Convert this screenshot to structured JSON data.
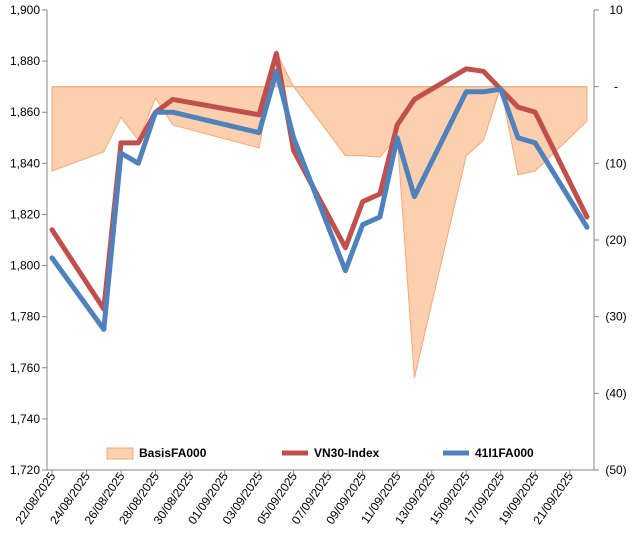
{
  "chart_data": {
    "type": "line",
    "title": "",
    "xlabel": "",
    "ylabel": "",
    "legend_position": "bottom",
    "grid": false,
    "x": [
      "22/08/2025",
      "25/08/2025",
      "26/08/2025",
      "27/08/2025",
      "28/08/2025",
      "29/08/2025",
      "03/09/2025",
      "04/09/2025",
      "05/09/2025",
      "08/09/2025",
      "09/09/2025",
      "10/09/2025",
      "11/09/2025",
      "12/09/2025",
      "15/09/2025",
      "16/09/2025",
      "17/09/2025",
      "18/09/2025",
      "19/09/2025",
      "22/09/2025"
    ],
    "x_tick_labels": [
      "22/08/2025",
      "24/08/2025",
      "26/08/2025",
      "28/08/2025",
      "30/08/2025",
      "01/09/2025",
      "03/09/2025",
      "05/09/2025",
      "07/09/2025",
      "09/09/2025",
      "11/09/2025",
      "13/09/2025",
      "15/09/2025",
      "17/09/2025",
      "19/09/2025",
      "21/09/2025"
    ],
    "y_left": {
      "ylim": [
        1720,
        1900
      ],
      "ticks": [
        "1,720",
        "1,740",
        "1,760",
        "1,780",
        "1,800",
        "1,820",
        "1,840",
        "1,860",
        "1,880",
        "1,900"
      ]
    },
    "y_right": {
      "ylim": [
        -50,
        10
      ],
      "ticks": [
        "(50)",
        "(40)",
        "(30)",
        "(20)",
        "(10)",
        "-",
        "10"
      ]
    },
    "series": [
      {
        "name": "BasisFA000",
        "kind": "area",
        "axis": "right",
        "color": "#FCCFAE",
        "stroke": "#F5A97A",
        "values": [
          -11,
          -8.5,
          -4,
          -7,
          -1.5,
          -5,
          -8,
          4.5,
          0,
          -9,
          -9,
          -9.2,
          -6.5,
          -38,
          -9,
          -7,
          0,
          -11.5,
          -11,
          -4.5
        ]
      },
      {
        "name": "VN30-Index",
        "kind": "line",
        "axis": "left",
        "color": "#C0504D",
        "values": [
          1814,
          1783,
          1848,
          1848,
          1860,
          1865,
          1859,
          1883,
          1845,
          1807,
          1825,
          1828,
          1855,
          1865,
          1877,
          1876,
          1869,
          1862,
          1860,
          1819
        ]
      },
      {
        "name": "41I1FA000",
        "kind": "line",
        "axis": "left",
        "color": "#4F81BD",
        "values": [
          1803,
          1775,
          1844,
          1840,
          1860,
          1860,
          1852,
          1876,
          1850,
          1798,
          1816,
          1819,
          1850,
          1827,
          1868,
          1868,
          1869,
          1850,
          1848,
          1815
        ]
      }
    ]
  }
}
